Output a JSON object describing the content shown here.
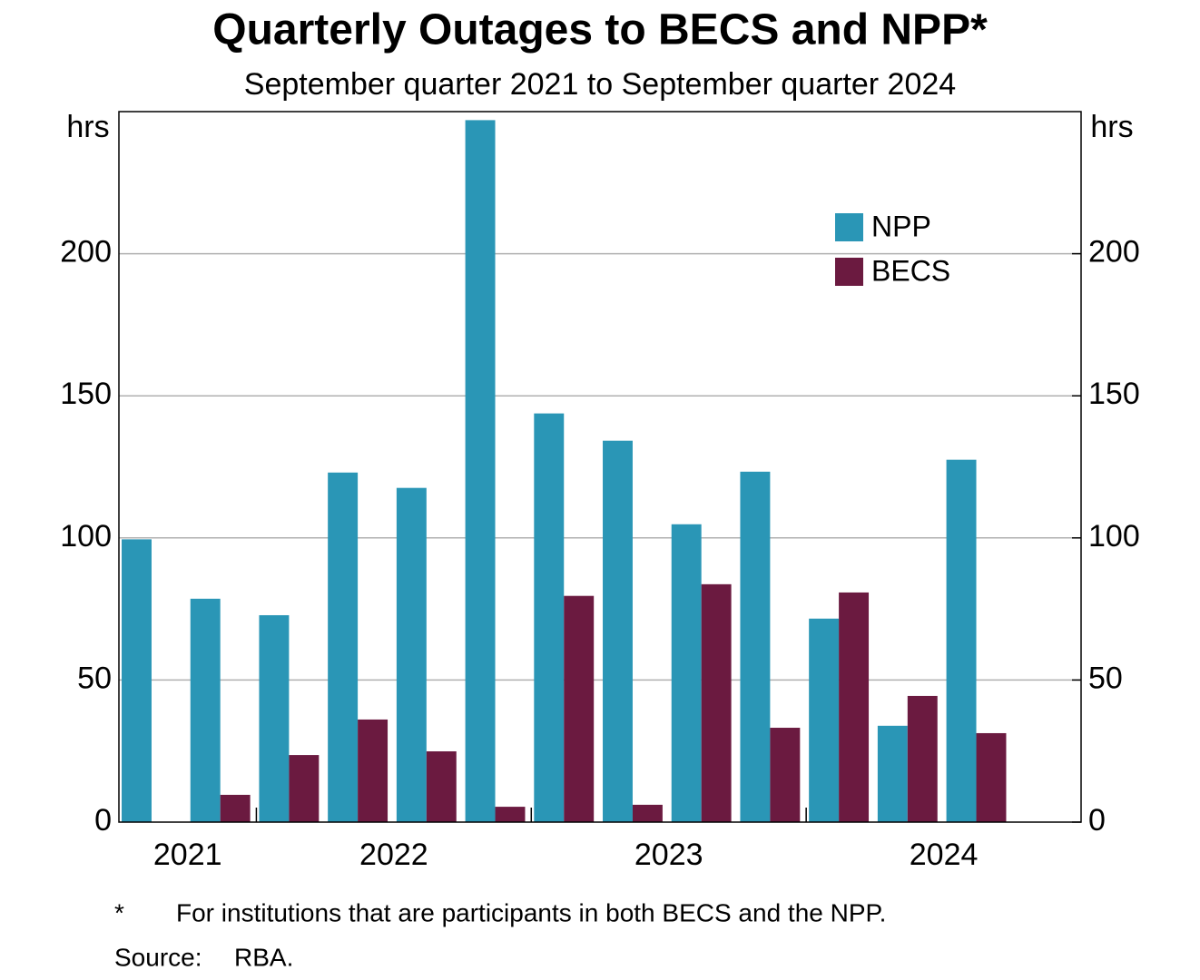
{
  "chart_data": {
    "type": "bar",
    "title": "Quarterly Outages to BECS and NPP*",
    "subtitle": "September quarter 2021 to September quarter 2024",
    "y_unit": "hrs",
    "y2_unit": "hrs",
    "categories": [
      "2021",
      "2021",
      "2022",
      "2022",
      "2022",
      "2022",
      "2023",
      "2023",
      "2023",
      "2023",
      "2024",
      "2024",
      "2024"
    ],
    "series": [
      {
        "name": "NPP",
        "color": "#2a96b6",
        "values": [
          99.5,
          78.6,
          72.8,
          123.0,
          117.6,
          247.0,
          143.8,
          134.2,
          104.8,
          123.3,
          71.6,
          33.9,
          127.5
        ]
      },
      {
        "name": "BECS",
        "color": "#6b1a40",
        "values": [
          0,
          9.6,
          23.6,
          36.1,
          24.9,
          5.4,
          79.6,
          6.1,
          83.7,
          33.2,
          80.8,
          44.4,
          31.3
        ]
      }
    ],
    "ylim": [
      0,
      250
    ],
    "yticks": [
      0,
      50,
      100,
      150,
      200
    ],
    "y2lim": [
      0,
      250
    ],
    "y2ticks": [
      0,
      50,
      100,
      150,
      200
    ],
    "grid": true,
    "legend": "upper right",
    "footnote_marker": "*",
    "footnote": "For institutions that are participants in both BECS and the NPP.",
    "source_label": "Source:",
    "source": "RBA."
  }
}
